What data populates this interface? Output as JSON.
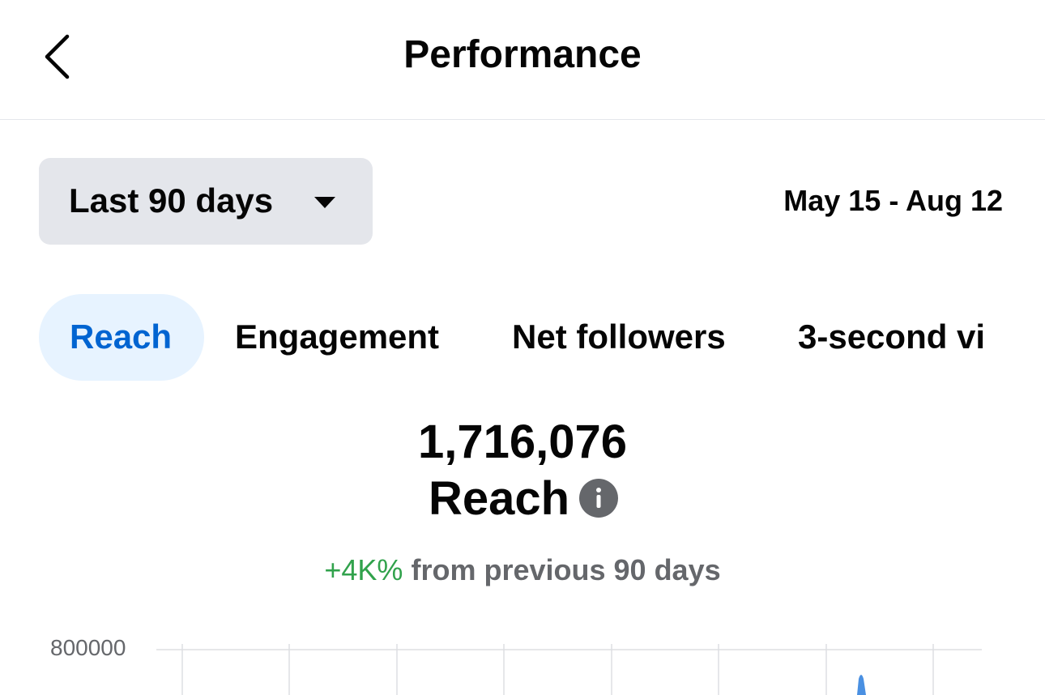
{
  "header": {
    "title": "Performance"
  },
  "filters": {
    "range": "Last 90 days",
    "dates": "May 15 - Aug 12"
  },
  "tabs": [
    "Reach",
    "Engagement",
    "Net followers",
    "3-second vi"
  ],
  "metric": {
    "value": "1,716,076",
    "label": "Reach",
    "change": "+4K%",
    "change_note": "from previous 90 days"
  },
  "chart": {
    "yticks": [
      800000
    ]
  }
}
